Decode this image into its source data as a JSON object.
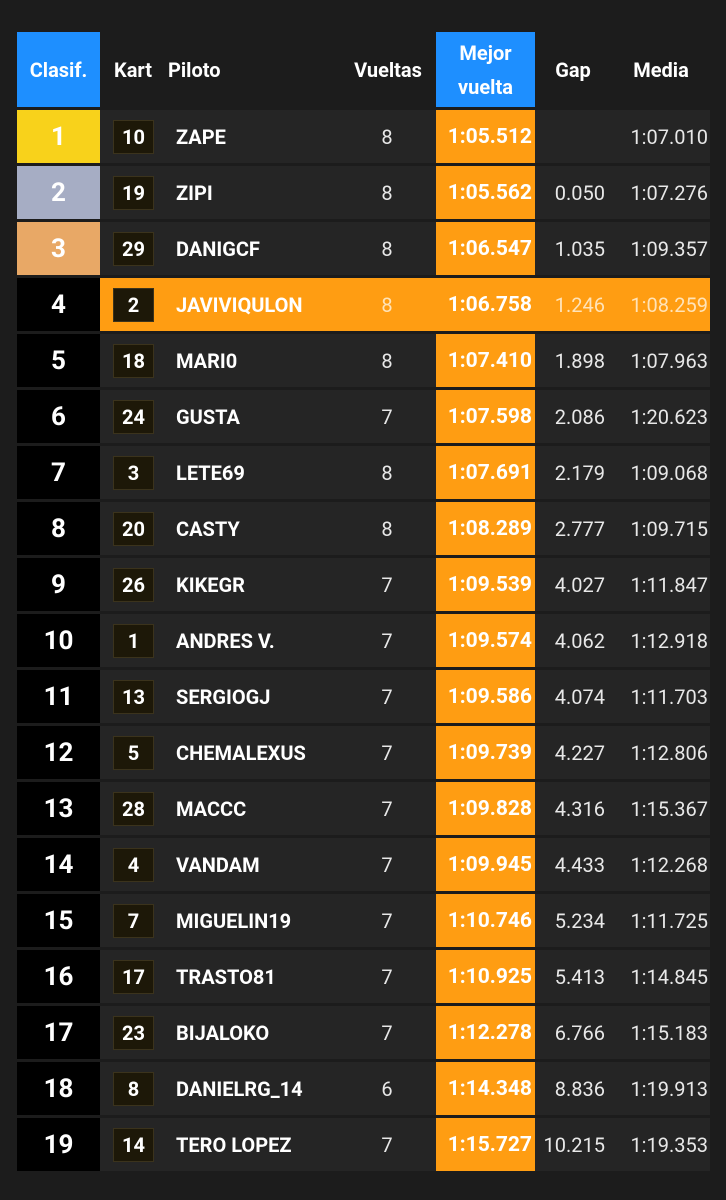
{
  "table": {
    "header": [
      "Clasif.",
      "Kart",
      "Piloto",
      "Vueltas",
      "Mejor vuelta",
      "Gap",
      "Media"
    ],
    "rows": [
      [
        "1",
        "10",
        "ZAPE",
        "8",
        "1:05.512",
        null,
        "1:07.010"
      ],
      [
        "2",
        "19",
        "ZIPI",
        "8",
        "1:05.562",
        "0.050",
        "1:07.276"
      ],
      [
        "3",
        "29",
        "DANIGCF",
        "8",
        "1:06.547",
        "1.035",
        "1:09.357"
      ],
      [
        "4",
        "2",
        "JAVIVIQULON",
        "8",
        "1:06.758",
        "1.246",
        "1:08.259"
      ],
      [
        "5",
        "18",
        "MARI0",
        "8",
        "1:07.410",
        "1.898",
        "1:07.963"
      ],
      [
        "6",
        "24",
        "GUSTA",
        "7",
        "1:07.598",
        "2.086",
        "1:20.623"
      ],
      [
        "7",
        "3",
        "LETE69",
        "8",
        "1:07.691",
        "2.179",
        "1:09.068"
      ],
      [
        "8",
        "20",
        "CASTY",
        "8",
        "1:08.289",
        "2.777",
        "1:09.715"
      ],
      [
        "9",
        "26",
        "KIKEGR",
        "7",
        "1:09.539",
        "4.027",
        "1:11.847"
      ],
      [
        "10",
        "1",
        "ANDRES V.",
        "7",
        "1:09.574",
        "4.062",
        "1:12.918"
      ],
      [
        "11",
        "13",
        "SERGIOGJ",
        "7",
        "1:09.586",
        "4.074",
        "1:11.703"
      ],
      [
        "12",
        "5",
        "CHEMALEXUS",
        "7",
        "1:09.739",
        "4.227",
        "1:12.806"
      ],
      [
        "13",
        "28",
        "MACCC",
        "7",
        "1:09.828",
        "4.316",
        "1:15.367"
      ],
      [
        "14",
        "4",
        "VANDAM",
        "7",
        "1:09.945",
        "4.433",
        "1:12.268"
      ],
      [
        "15",
        "7",
        "MIGUELIN19",
        "7",
        "1:10.746",
        "5.234",
        "1:11.725"
      ],
      [
        "16",
        "17",
        "TRASTO81",
        "7",
        "1:10.925",
        "5.413",
        "1:14.845"
      ],
      [
        "17",
        "23",
        "BIJALOKO",
        "7",
        "1:12.278",
        "6.766",
        "1:15.183"
      ],
      [
        "18",
        "8",
        "DANIELRG_14",
        "6",
        "1:14.348",
        "8.836",
        "1:19.913"
      ],
      [
        "19",
        "14",
        "TERO LOPEZ",
        "7",
        "1:15.727",
        "10.215",
        "1:19.353"
      ]
    ]
  }
}
